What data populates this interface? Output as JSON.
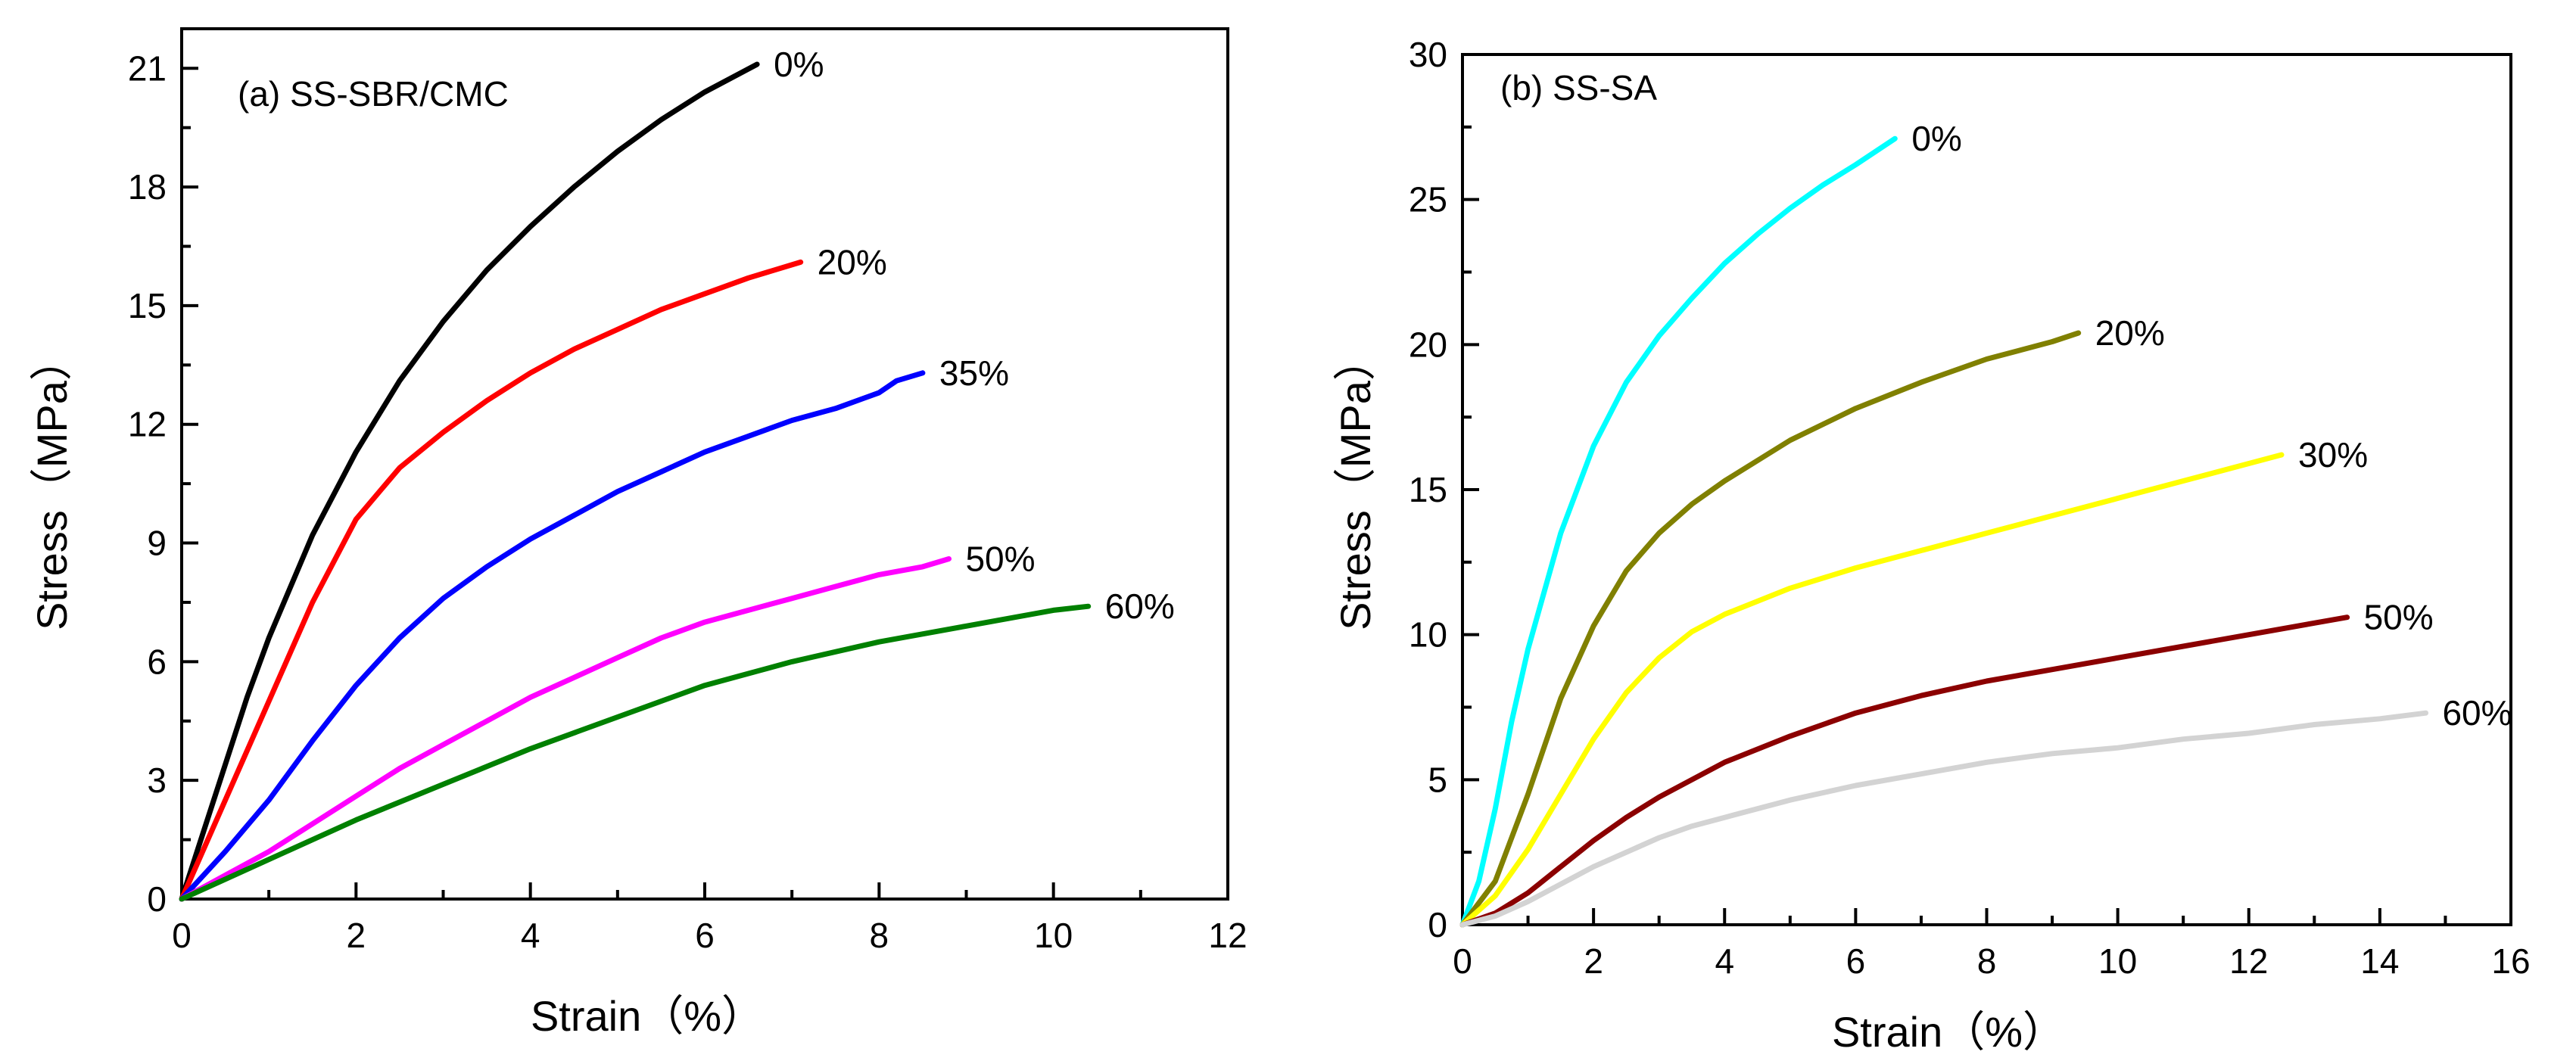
{
  "chart_data": [
    {
      "type": "line",
      "panel_title": "(a) SS-SBR/CMC",
      "xlabel": "Strain（%）",
      "ylabel": "Stress（MPa）",
      "xlim": [
        0,
        12
      ],
      "ylim": [
        0,
        22
      ],
      "xticks": [
        0,
        2,
        4,
        6,
        8,
        10,
        12
      ],
      "yticks": [
        0,
        3,
        6,
        9,
        12,
        15,
        18,
        21
      ],
      "grid": false,
      "series": [
        {
          "name": "0%",
          "label": "0%",
          "color": "#000000",
          "x": [
            0,
            0.25,
            0.5,
            0.75,
            1.0,
            1.5,
            2.0,
            2.5,
            3.0,
            3.5,
            4.0,
            4.5,
            5.0,
            5.5,
            6.0,
            6.6
          ],
          "y": [
            0,
            1.7,
            3.4,
            5.1,
            6.6,
            9.2,
            11.3,
            13.1,
            14.6,
            15.9,
            17.0,
            18.0,
            18.9,
            19.7,
            20.4,
            21.1
          ]
        },
        {
          "name": "20%",
          "label": "20%",
          "color": "#ff0000",
          "x": [
            0,
            0.5,
            1.0,
            1.5,
            2.0,
            2.5,
            3.0,
            3.5,
            4.0,
            4.5,
            5.0,
            5.5,
            6.0,
            6.5,
            7.1
          ],
          "y": [
            0,
            2.5,
            5.0,
            7.5,
            9.6,
            10.9,
            11.8,
            12.6,
            13.3,
            13.9,
            14.4,
            14.9,
            15.3,
            15.7,
            16.1
          ]
        },
        {
          "name": "35%",
          "label": "35%",
          "color": "#0000ff",
          "x": [
            0,
            0.5,
            1.0,
            1.5,
            2.0,
            2.5,
            3.0,
            3.5,
            4.0,
            4.5,
            5.0,
            5.5,
            6.0,
            6.5,
            7.0,
            7.5,
            8.0,
            8.2,
            8.5
          ],
          "y": [
            0,
            1.2,
            2.5,
            4.0,
            5.4,
            6.6,
            7.6,
            8.4,
            9.1,
            9.7,
            10.3,
            10.8,
            11.3,
            11.7,
            12.1,
            12.4,
            12.8,
            13.1,
            13.3
          ]
        },
        {
          "name": "50%",
          "label": "50%",
          "color": "#ff00ff",
          "x": [
            0,
            0.5,
            1.0,
            1.5,
            2.0,
            2.5,
            3.0,
            3.5,
            4.0,
            4.5,
            5.0,
            5.5,
            6.0,
            6.5,
            7.0,
            7.5,
            8.0,
            8.5,
            8.8
          ],
          "y": [
            0,
            0.6,
            1.2,
            1.9,
            2.6,
            3.3,
            3.9,
            4.5,
            5.1,
            5.6,
            6.1,
            6.6,
            7.0,
            7.3,
            7.6,
            7.9,
            8.2,
            8.4,
            8.6
          ]
        },
        {
          "name": "60%",
          "label": "60%",
          "color": "#008000",
          "x": [
            0,
            1.0,
            2.0,
            3.0,
            4.0,
            5.0,
            6.0,
            7.0,
            8.0,
            9.0,
            10.0,
            10.4
          ],
          "y": [
            0,
            1.0,
            2.0,
            2.9,
            3.8,
            4.6,
            5.4,
            6.0,
            6.5,
            6.9,
            7.3,
            7.4
          ]
        }
      ]
    },
    {
      "type": "line",
      "panel_title": "(b) SS-SA",
      "xlabel": "Strain（%）",
      "ylabel": "Stress（MPa）",
      "xlim": [
        0,
        16
      ],
      "ylim": [
        0,
        30
      ],
      "xticks": [
        0,
        2,
        4,
        6,
        8,
        10,
        12,
        14,
        16
      ],
      "yticks": [
        0,
        5,
        10,
        15,
        20,
        25,
        30
      ],
      "grid": false,
      "series": [
        {
          "name": "0%",
          "label": "0%",
          "color": "#00ffff",
          "x": [
            0,
            0.25,
            0.5,
            0.75,
            1.0,
            1.5,
            2.0,
            2.5,
            3.0,
            3.5,
            4.0,
            4.5,
            5.0,
            5.5,
            6.0,
            6.6
          ],
          "y": [
            0,
            1.5,
            4.0,
            7.0,
            9.5,
            13.5,
            16.5,
            18.7,
            20.3,
            21.6,
            22.8,
            23.8,
            24.7,
            25.5,
            26.2,
            27.1
          ]
        },
        {
          "name": "20%",
          "label": "20%",
          "color": "#808000",
          "x": [
            0,
            0.5,
            1.0,
            1.5,
            2.0,
            2.5,
            3.0,
            3.5,
            4.0,
            5.0,
            6.0,
            7.0,
            8.0,
            9.0,
            9.4
          ],
          "y": [
            0,
            1.5,
            4.5,
            7.8,
            10.3,
            12.2,
            13.5,
            14.5,
            15.3,
            16.7,
            17.8,
            18.7,
            19.5,
            20.1,
            20.4
          ]
        },
        {
          "name": "30%",
          "label": "30%",
          "color": "#ffff00",
          "x": [
            0,
            0.5,
            1.0,
            1.5,
            2.0,
            2.5,
            3.0,
            3.5,
            4.0,
            5.0,
            6.0,
            7.0,
            8.0,
            9.0,
            10.0,
            11.0,
            12.0,
            12.5
          ],
          "y": [
            0,
            1.0,
            2.6,
            4.5,
            6.4,
            8.0,
            9.2,
            10.1,
            10.7,
            11.6,
            12.3,
            12.9,
            13.5,
            14.1,
            14.7,
            15.3,
            15.9,
            16.2
          ]
        },
        {
          "name": "50%",
          "label": "50%",
          "color": "#8b0000",
          "x": [
            0,
            0.5,
            1.0,
            1.5,
            2.0,
            2.5,
            3.0,
            3.5,
            4.0,
            5.0,
            6.0,
            7.0,
            8.0,
            9.0,
            10.0,
            11.0,
            12.0,
            13.0,
            13.5
          ],
          "y": [
            0,
            0.4,
            1.1,
            2.0,
            2.9,
            3.7,
            4.4,
            5.0,
            5.6,
            6.5,
            7.3,
            7.9,
            8.4,
            8.8,
            9.2,
            9.6,
            10.0,
            10.4,
            10.6
          ]
        },
        {
          "name": "60%",
          "label": "60%",
          "color": "#d3d3d3",
          "x": [
            0,
            0.5,
            1.0,
            1.5,
            2.0,
            2.5,
            3.0,
            3.5,
            4.0,
            5.0,
            6.0,
            7.0,
            8.0,
            9.0,
            10.0,
            11.0,
            12.0,
            13.0,
            14.0,
            14.7
          ],
          "y": [
            0,
            0.3,
            0.8,
            1.4,
            2.0,
            2.5,
            3.0,
            3.4,
            3.7,
            4.3,
            4.8,
            5.2,
            5.6,
            5.9,
            6.1,
            6.4,
            6.6,
            6.9,
            7.1,
            7.3
          ]
        }
      ]
    }
  ]
}
